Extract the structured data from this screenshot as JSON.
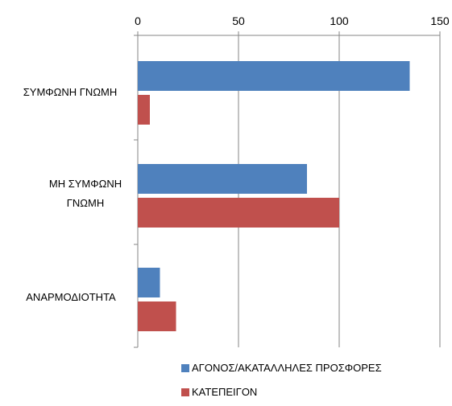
{
  "chart_data": {
    "type": "bar",
    "orientation": "horizontal",
    "categories": [
      "ΣΥΜΦΩΝΗ ΓΝΩΜΗ",
      "ΜΗ ΣΥΜΦΩΝΗ ΓΝΩΜΗ",
      "ΑΝΑΡΜΟΔΙΟΤΗΤΑ"
    ],
    "series": [
      {
        "name": "ΑΓΟΝΟΣ/ΑΚΑΤΑΛΛΗΛΕΣ  ΠΡΟΣΦΟΡΕΣ",
        "color": "#4F81BD",
        "values": [
          135,
          84,
          11
        ]
      },
      {
        "name": "ΚΑΤΕΠΕΙΓΟΝ",
        "color": "#C0504D",
        "values": [
          6,
          100,
          19
        ]
      }
    ],
    "xaxis": {
      "position": "top",
      "min": 0,
      "max": 150,
      "ticks": [
        0,
        50,
        100,
        150
      ]
    },
    "grid": "vertical",
    "legend": "bottom",
    "title": "",
    "xlabel": "",
    "ylabel": ""
  }
}
